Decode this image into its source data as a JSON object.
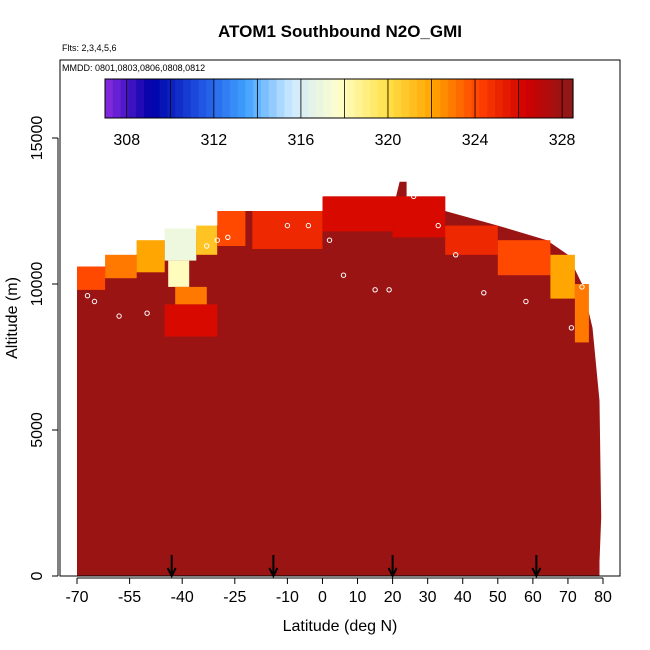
{
  "chart_data": {
    "type": "heatmap",
    "title": "ATOM1 Southbound N2O_GMI",
    "subtitle_flights": "Flts: 2,3,4,5,6",
    "subtitle_dates": "MMDD: 0801,0803,0806,0808,0812",
    "xlabel": "Latitude (deg N)",
    "ylabel": "Altitude (m)",
    "xlim": [
      -70,
      85
    ],
    "ylim": [
      0,
      18000
    ],
    "x_ticks": [
      -70,
      -55,
      -40,
      -25,
      -10,
      0,
      10,
      20,
      30,
      40,
      50,
      60,
      70,
      80
    ],
    "y_ticks": [
      0,
      5000,
      10000,
      15000
    ],
    "colorbar": {
      "min": 307,
      "max": 328.5,
      "ticks": [
        308,
        312,
        316,
        320,
        324,
        328
      ],
      "colors": [
        "#8a2be2",
        "#0000a8",
        "#1d4fe0",
        "#3fa0ff",
        "#cfeaff",
        "#ffffcc",
        "#ffe24a",
        "#ffa500",
        "#ff4000",
        "#d00000",
        "#8b1a1a"
      ]
    },
    "background_value": 328,
    "top_profile": [
      {
        "lat": -70,
        "alt": 10600
      },
      {
        "lat": -62,
        "alt": 10600
      },
      {
        "lat": -53,
        "alt": 11000
      },
      {
        "lat": -45,
        "alt": 11500
      },
      {
        "lat": -40,
        "alt": 11600
      },
      {
        "lat": -30,
        "alt": 12000
      },
      {
        "lat": -22,
        "alt": 12500
      },
      {
        "lat": 0,
        "alt": 12500
      },
      {
        "lat": 0.5,
        "alt": 13000
      },
      {
        "lat": 21,
        "alt": 13000
      },
      {
        "lat": 22,
        "alt": 13500
      },
      {
        "lat": 24,
        "alt": 13500
      },
      {
        "lat": 24,
        "alt": 13000
      },
      {
        "lat": 35,
        "alt": 13000
      },
      {
        "lat": 35,
        "alt": 12500
      },
      {
        "lat": 50,
        "alt": 12000
      },
      {
        "lat": 64,
        "alt": 11500
      },
      {
        "lat": 70,
        "alt": 11000
      },
      {
        "lat": 74,
        "alt": 10000
      },
      {
        "lat": 77,
        "alt": 8500
      },
      {
        "lat": 79,
        "alt": 6000
      },
      {
        "lat": 79.5,
        "alt": 2000
      },
      {
        "lat": 79,
        "alt": 500
      }
    ],
    "patches": [
      {
        "lat0": -70,
        "lat1": -62,
        "alt0": 9800,
        "alt1": 10600,
        "value": 324
      },
      {
        "lat0": -62,
        "lat1": -53,
        "alt0": 10200,
        "alt1": 11000,
        "value": 323
      },
      {
        "lat0": -53,
        "lat1": -45,
        "alt0": 10400,
        "alt1": 11500,
        "value": 322
      },
      {
        "lat0": -45,
        "lat1": -36,
        "alt0": 10800,
        "alt1": 11900,
        "value": 317
      },
      {
        "lat0": -44,
        "lat1": -38,
        "alt0": 9900,
        "alt1": 10800,
        "value": 318
      },
      {
        "lat0": -36,
        "lat1": -30,
        "alt0": 11000,
        "alt1": 12000,
        "value": 321
      },
      {
        "lat0": -30,
        "lat1": -22,
        "alt0": 11300,
        "alt1": 12500,
        "value": 324
      },
      {
        "lat0": -42,
        "lat1": -33,
        "alt0": 9300,
        "alt1": 9900,
        "value": 323
      },
      {
        "lat0": -45,
        "lat1": -30,
        "alt0": 8200,
        "alt1": 9300,
        "value": 326
      },
      {
        "lat0": -20,
        "lat1": 0,
        "alt0": 11200,
        "alt1": 12500,
        "value": 325
      },
      {
        "lat0": 0,
        "lat1": 20,
        "alt0": 11800,
        "alt1": 13000,
        "value": 326
      },
      {
        "lat0": 20,
        "lat1": 35,
        "alt0": 11600,
        "alt1": 13000,
        "value": 326
      },
      {
        "lat0": 35,
        "lat1": 50,
        "alt0": 11000,
        "alt1": 12000,
        "value": 325
      },
      {
        "lat0": 50,
        "lat1": 65,
        "alt0": 10300,
        "alt1": 11500,
        "value": 324
      },
      {
        "lat0": 65,
        "lat1": 72,
        "alt0": 9500,
        "alt1": 11000,
        "value": 322
      },
      {
        "lat0": 72,
        "lat1": 76,
        "alt0": 8000,
        "alt1": 10000,
        "value": 323
      }
    ],
    "arrows_lat": [
      -43,
      -14,
      20,
      61
    ],
    "flight_tracks": [
      {
        "lat": -67,
        "alt": 9600
      },
      {
        "lat": -65,
        "alt": 9400
      },
      {
        "lat": -58,
        "alt": 8900
      },
      {
        "lat": -50,
        "alt": 9000
      },
      {
        "lat": -33,
        "alt": 11300
      },
      {
        "lat": -30,
        "alt": 11500
      },
      {
        "lat": -27,
        "alt": 11600
      },
      {
        "lat": -10,
        "alt": 12000
      },
      {
        "lat": -4,
        "alt": 12000
      },
      {
        "lat": 2,
        "alt": 11500
      },
      {
        "lat": 6,
        "alt": 10300
      },
      {
        "lat": 15,
        "alt": 9800
      },
      {
        "lat": 19,
        "alt": 9800
      },
      {
        "lat": 26,
        "alt": 13000
      },
      {
        "lat": 33,
        "alt": 12000
      },
      {
        "lat": 38,
        "alt": 11000
      },
      {
        "lat": 46,
        "alt": 9700
      },
      {
        "lat": 58,
        "alt": 9400
      },
      {
        "lat": 71,
        "alt": 8500
      },
      {
        "lat": 74,
        "alt": 9900
      }
    ]
  }
}
